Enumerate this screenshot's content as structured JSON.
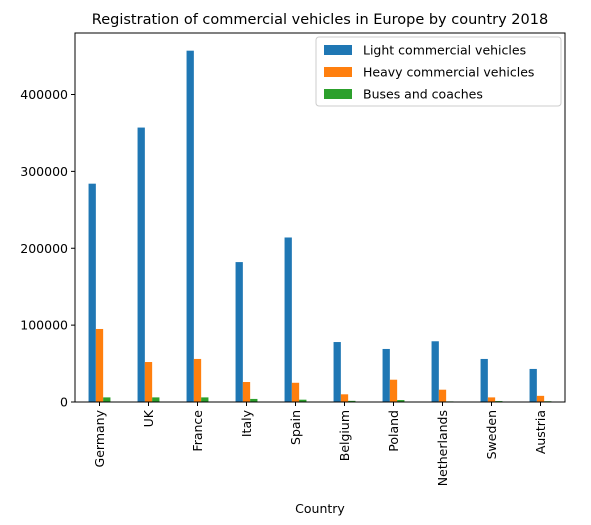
{
  "chart_data": {
    "type": "bar",
    "title": "Registration of commercial vehicles in Europe by country 2018",
    "xlabel": "Country",
    "ylabel": "",
    "ylim": [
      0,
      480000
    ],
    "yticks": [
      0,
      100000,
      200000,
      300000,
      400000
    ],
    "legend_position": "top-right",
    "grid": false,
    "categories": [
      "Germany",
      "UK",
      "France",
      "Italy",
      "Spain",
      "Belgium",
      "Poland",
      "Netherlands",
      "Sweden",
      "Austria"
    ],
    "series": [
      {
        "name": "Light commercial vehicles",
        "color": "#1f77b4",
        "values": [
          284000,
          357000,
          457000,
          182000,
          214000,
          78000,
          69000,
          79000,
          56000,
          43000
        ]
      },
      {
        "name": "Heavy commercial vehicles",
        "color": "#ff7f0e",
        "values": [
          95000,
          52000,
          56000,
          26000,
          25000,
          10000,
          29000,
          16000,
          6000,
          8000
        ]
      },
      {
        "name": "Buses and coaches",
        "color": "#2ca02c",
        "values": [
          6000,
          6000,
          6000,
          4000,
          3000,
          1500,
          2500,
          800,
          1200,
          1000
        ]
      }
    ]
  }
}
